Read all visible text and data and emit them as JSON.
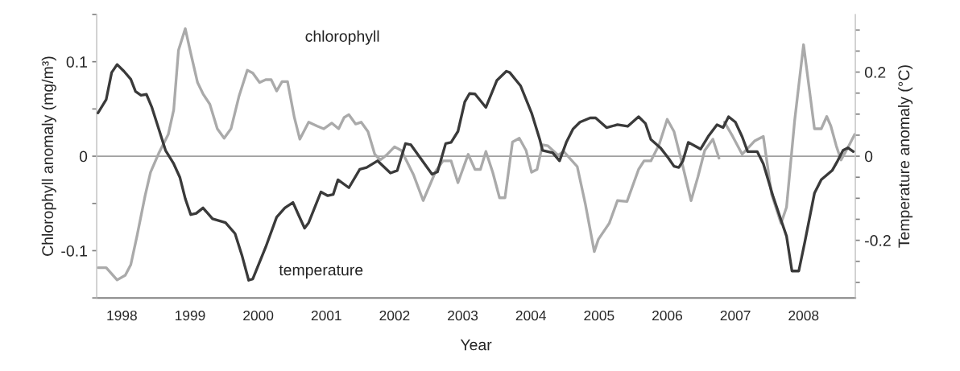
{
  "chart_data": {
    "type": "line",
    "xlabel": "Year",
    "ylabel": "Chlorophyll anomaly (mg/m³)",
    "y2label": "Temperature anomaly (°C)",
    "xlim": [
      1997.63,
      2008.76
    ],
    "xticks": [
      1998,
      1999,
      2000,
      2001,
      2002,
      2003,
      2004,
      2005,
      2006,
      2007,
      2008
    ],
    "ylim": [
      -0.15,
      0.15
    ],
    "yticks": [
      {
        "value": -0.15,
        "label": null
      },
      {
        "value": -0.1,
        "label": "-0.1"
      },
      {
        "value": -0.05,
        "label": null
      },
      0,
      {
        "value": 0.05,
        "label": null
      },
      {
        "value": 0.1,
        "label": "0.1"
      },
      {
        "value": 0.15,
        "label": null
      }
    ],
    "y2lim": [
      -0.337,
      0.337
    ],
    "y2ticks": [
      {
        "value": -0.3,
        "label": null
      },
      {
        "value": -0.25,
        "label": null
      },
      {
        "value": -0.2,
        "label": "-0.2"
      },
      {
        "value": -0.15,
        "label": null
      },
      {
        "value": -0.1,
        "label": null
      },
      {
        "value": -0.05,
        "label": null
      },
      0,
      {
        "value": 0.05,
        "label": null
      },
      {
        "value": 0.1,
        "label": null
      },
      {
        "value": 0.15,
        "label": null
      },
      {
        "value": 0.2,
        "label": "0.2"
      },
      {
        "value": 0.25,
        "label": null
      },
      {
        "value": 0.3,
        "label": null
      }
    ],
    "ref_lines": [
      {
        "axis": "y",
        "value": 0,
        "color": "#a0a0a0"
      }
    ],
    "series": [
      {
        "name": "chlorophyll",
        "color": "#aaaaaa",
        "x": [
          1997.65,
          1997.77,
          1997.93,
          1998.05,
          1998.13,
          1998.22,
          1998.34,
          1998.42,
          1998.54,
          1998.68,
          1998.76,
          1998.83,
          1998.93,
          1999.01,
          1999.11,
          1999.19,
          1999.29,
          1999.4,
          1999.5,
          1999.6,
          1999.72,
          1999.84,
          1999.92,
          2000.02,
          2000.11,
          2000.19,
          2000.27,
          2000.35,
          2000.43,
          2000.53,
          2000.61,
          2000.74,
          2000.86,
          2000.96,
          2001.08,
          2001.18,
          2001.26,
          2001.33,
          2001.43,
          2001.51,
          2001.61,
          2001.71,
          2001.79,
          2001.88,
          2002.0,
          2002.1,
          2002.28,
          2002.42,
          2002.61,
          2002.71,
          2002.83,
          2002.93,
          2003.08,
          2003.18,
          2003.26,
          2003.34,
          2003.44,
          2003.54,
          2003.62,
          2003.73,
          2003.83,
          2003.93,
          2004.01,
          2004.09,
          2004.17,
          2004.25,
          2004.4,
          2004.48,
          2004.68,
          2004.8,
          2004.93,
          2004.99,
          2005.15,
          2005.27,
          2005.41,
          2005.58,
          2005.66,
          2005.76,
          2005.88,
          2006.0,
          2006.1,
          2006.23,
          2006.35,
          2006.45,
          2006.55,
          2006.67,
          2006.76,
          2006.8,
          2006.84,
          2006.96,
          2007.1,
          2007.28,
          2007.41,
          2007.53,
          2007.67,
          2007.75,
          2007.87,
          2008.0,
          2008.16,
          2008.26,
          2008.34,
          2008.4,
          2008.48,
          2008.55,
          2008.65,
          2008.75
        ],
        "values": [
          -0.118,
          -0.118,
          -0.131,
          -0.126,
          -0.115,
          -0.085,
          -0.042,
          -0.017,
          0.003,
          0.023,
          0.049,
          0.112,
          0.135,
          0.109,
          0.078,
          0.066,
          0.055,
          0.029,
          0.019,
          0.029,
          0.064,
          0.091,
          0.088,
          0.078,
          0.081,
          0.081,
          0.069,
          0.079,
          0.079,
          0.041,
          0.018,
          0.036,
          0.032,
          0.029,
          0.035,
          0.029,
          0.041,
          0.044,
          0.034,
          0.036,
          0.026,
          0.002,
          -0.004,
          0.001,
          0.01,
          0.006,
          -0.02,
          -0.047,
          -0.015,
          -0.005,
          -0.005,
          -0.028,
          0.002,
          -0.014,
          -0.014,
          0.005,
          -0.017,
          -0.044,
          -0.044,
          0.015,
          0.019,
          0.006,
          -0.017,
          -0.014,
          0.012,
          0.011,
          0.001,
          0.005,
          -0.011,
          -0.051,
          -0.101,
          -0.088,
          -0.071,
          -0.047,
          -0.048,
          -0.014,
          -0.005,
          -0.005,
          0.012,
          0.039,
          0.026,
          -0.011,
          -0.047,
          -0.022,
          0.006,
          0.018,
          -0.002,
          null,
          0.036,
          0.021,
          0.002,
          0.016,
          0.021,
          -0.04,
          -0.071,
          -0.054,
          0.038,
          0.118,
          0.029,
          0.029,
          0.042,
          0.032,
          0.011,
          -0.004,
          0.009,
          0.023
        ]
      },
      {
        "name": "temperature",
        "color": "#3a3a3a",
        "axis": "y2",
        "x": [
          1997.65,
          1997.77,
          1997.85,
          1997.93,
          1998.03,
          1998.13,
          1998.2,
          1998.28,
          1998.36,
          1998.44,
          1998.54,
          1998.64,
          1998.76,
          1998.85,
          1998.93,
          1999.01,
          1999.09,
          1999.19,
          1999.33,
          1999.52,
          1999.66,
          1999.76,
          1999.86,
          1999.92,
          2000.11,
          2000.27,
          2000.39,
          2000.51,
          2000.59,
          2000.68,
          2000.74,
          2000.92,
          2001.02,
          2001.1,
          2001.17,
          2001.33,
          2001.49,
          2001.59,
          2001.75,
          2001.94,
          2002.04,
          2002.16,
          2002.24,
          2002.55,
          2002.63,
          2002.75,
          2002.83,
          2002.93,
          2003.03,
          2003.1,
          2003.18,
          2003.34,
          2003.5,
          2003.64,
          2003.69,
          2003.85,
          2004.01,
          2004.13,
          2004.17,
          2004.32,
          2004.42,
          2004.52,
          2004.62,
          2004.72,
          2004.87,
          2004.95,
          2005.11,
          2005.27,
          2005.42,
          2005.58,
          2005.68,
          2005.76,
          2005.9,
          2006.02,
          2006.1,
          2006.17,
          2006.23,
          2006.31,
          2006.41,
          2006.49,
          2006.61,
          2006.73,
          2006.82,
          2006.9,
          2007.0,
          2007.1,
          2007.18,
          2007.32,
          2007.41,
          2007.55,
          2007.67,
          2007.75,
          2007.83,
          2007.93,
          2008.02,
          2008.16,
          2008.26,
          2008.42,
          2008.5,
          2008.58,
          2008.65,
          2008.73
        ],
        "values": [
          0.103,
          0.135,
          0.199,
          0.218,
          0.202,
          0.183,
          0.154,
          0.145,
          0.147,
          0.116,
          0.065,
          0.014,
          -0.018,
          -0.05,
          -0.101,
          -0.139,
          -0.136,
          -0.123,
          -0.149,
          -0.158,
          -0.184,
          -0.235,
          -0.295,
          -0.292,
          -0.216,
          -0.145,
          -0.123,
          -0.11,
          -0.139,
          -0.171,
          -0.158,
          -0.085,
          -0.094,
          -0.091,
          -0.056,
          -0.075,
          -0.031,
          -0.027,
          -0.011,
          -0.04,
          -0.034,
          0.03,
          0.027,
          -0.043,
          -0.037,
          0.03,
          0.033,
          0.059,
          0.129,
          0.149,
          0.148,
          0.116,
          0.18,
          0.202,
          0.199,
          0.167,
          0.103,
          0.04,
          0.014,
          0.008,
          -0.011,
          0.033,
          0.065,
          0.081,
          0.091,
          0.091,
          0.068,
          0.075,
          0.071,
          0.094,
          0.078,
          0.04,
          0.02,
          -0.005,
          -0.024,
          -0.027,
          -0.011,
          0.033,
          0.024,
          0.017,
          0.049,
          0.075,
          0.068,
          0.094,
          0.081,
          0.046,
          0.011,
          0.011,
          -0.018,
          -0.094,
          -0.152,
          -0.19,
          -0.273,
          -0.273,
          -0.203,
          -0.088,
          -0.056,
          -0.034,
          -0.011,
          0.014,
          0.02,
          0.011
        ]
      }
    ]
  }
}
